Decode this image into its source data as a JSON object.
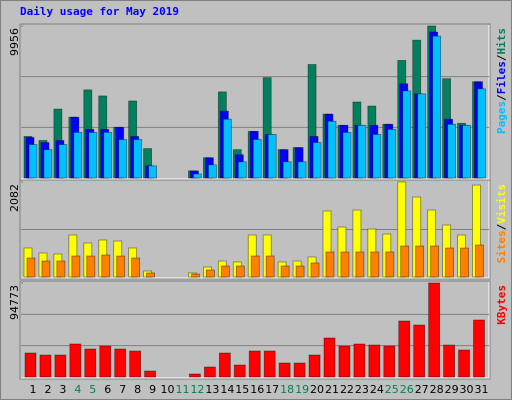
{
  "chart_data": [
    {
      "type": "bar",
      "title": "Daily usage for May 2019",
      "ylim": [
        0,
        9956
      ],
      "yticks": [
        9956
      ],
      "separator": "/",
      "series": [
        {
          "name": "Hits",
          "color": "#00805c",
          "values": [
            2721,
            2456,
            4513,
            3982,
            5774,
            5376,
            3319,
            5044,
            1925,
            0,
            0,
            465,
            1327,
            5641,
            1858,
            3053,
            6571,
            1858,
            1991,
            7433,
            4181,
            3451,
            4978,
            4712,
            3518,
            7699,
            9026,
            9956,
            6504,
            3584,
            6305
          ]
        },
        {
          "name": "Files",
          "color": "#0000ff",
          "values": [
            2655,
            2323,
            2456,
            3982,
            3186,
            3186,
            3319,
            2721,
            796,
            0,
            0,
            465,
            1327,
            4380,
            1527,
            3053,
            2854,
            1858,
            1991,
            2721,
            4181,
            3451,
            3451,
            3451,
            3518,
            6172,
            5509,
            9557,
            3849,
            3451,
            6305
          ]
        },
        {
          "name": "Pages",
          "color": "#00c0ff",
          "values": [
            2190,
            1858,
            2190,
            2987,
            2987,
            2987,
            2522,
            2522,
            796,
            0,
            0,
            265,
            863,
            3849,
            1062,
            2522,
            2854,
            1062,
            1062,
            2323,
            3717,
            2987,
            3451,
            2854,
            3186,
            5708,
            5509,
            9292,
            3518,
            3451,
            5841
          ]
        }
      ]
    },
    {
      "type": "bar",
      "ylim": [
        0,
        2082
      ],
      "yticks": [
        2082
      ],
      "separator": "/",
      "series": [
        {
          "name": "Visits",
          "color": "#ffff00",
          "values": [
            635,
            526,
            504,
            920,
            745,
            810,
            788,
            635,
            131,
            0,
            0,
            88,
            219,
            350,
            329,
            920,
            920,
            329,
            350,
            438,
            1446,
            1095,
            1467,
            1051,
            942,
            2082,
            1752,
            1467,
            1139,
            920,
            2015
          ]
        },
        {
          "name": "Sites",
          "color": "#ff8000",
          "values": [
            416,
            350,
            350,
            460,
            460,
            482,
            460,
            416,
            88,
            0,
            0,
            66,
            153,
            241,
            241,
            460,
            460,
            241,
            241,
            307,
            548,
            548,
            548,
            548,
            548,
            679,
            679,
            679,
            635,
            635,
            701
          ]
        }
      ]
    },
    {
      "type": "bar",
      "ylim": [
        0,
        94773
      ],
      "yticks": [
        94773
      ],
      "categories": [
        "1",
        "2",
        "3",
        "4",
        "5",
        "6",
        "7",
        "8",
        "9",
        "10",
        "11",
        "12",
        "13",
        "14",
        "15",
        "16",
        "17",
        "18",
        "19",
        "20",
        "21",
        "22",
        "23",
        "24",
        "25",
        "26",
        "27",
        "28",
        "29",
        "30",
        "31"
      ],
      "category_colors": [
        "#000000",
        "#000000",
        "#000000",
        "#00805c",
        "#00805c",
        "#000000",
        "#000000",
        "#000000",
        "#000000",
        "#000000",
        "#00805c",
        "#00805c",
        "#000000",
        "#000000",
        "#000000",
        "#000000",
        "#000000",
        "#00805c",
        "#00805c",
        "#000000",
        "#000000",
        "#000000",
        "#000000",
        "#000000",
        "#00805c",
        "#00805c",
        "#000000",
        "#000000",
        "#000000",
        "#000000",
        "#000000"
      ],
      "series": [
        {
          "name": "KBytes",
          "color": "#ff0000",
          "values": [
            24190,
            22180,
            22180,
            33260,
            28220,
            31250,
            28220,
            26210,
            6050,
            0,
            0,
            3020,
            10080,
            24190,
            12100,
            26210,
            26210,
            14110,
            14110,
            22180,
            39310,
            31250,
            33260,
            32260,
            31250,
            56450,
            52420,
            94773,
            32260,
            27220,
            57460
          ]
        }
      ]
    }
  ]
}
